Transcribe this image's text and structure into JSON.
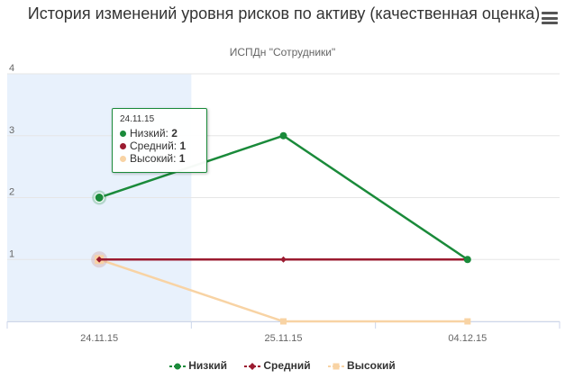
{
  "chart_data": {
    "type": "line",
    "title": "История изменений уровня рисков по активу (качественная оценка)",
    "subtitle": "ИСПДн \"Сотрудники\"",
    "categories": [
      "24.11.15",
      "25.11.15",
      "04.12.15"
    ],
    "y_ticks": [
      "1",
      "2",
      "3",
      "4"
    ],
    "ylim": [
      0,
      4
    ],
    "grid": true,
    "legend_position": "bottom",
    "series": [
      {
        "name": "Низкий",
        "values": [
          2,
          3,
          1
        ],
        "color": "#1a8a3a",
        "marker": "circle"
      },
      {
        "name": "Средний",
        "values": [
          1,
          1,
          1
        ],
        "color": "#9b1b30",
        "marker": "diamond"
      },
      {
        "name": "Высокий",
        "values": [
          1,
          0,
          0
        ],
        "color": "#f8d3a4",
        "marker": "square"
      }
    ],
    "highlighted_category": "24.11.15",
    "highlight_color": "#e8f1fc",
    "tooltip": {
      "date": "24.11.15",
      "rows": [
        {
          "label": "Низкий:",
          "value": "2",
          "color": "#1a8a3a"
        },
        {
          "label": "Средний:",
          "value": "1",
          "color": "#9b1b30"
        },
        {
          "label": "Высокий:",
          "value": "1",
          "color": "#f8d3a4"
        }
      ]
    }
  },
  "menu": {
    "icon": "hamburger-menu-icon"
  }
}
